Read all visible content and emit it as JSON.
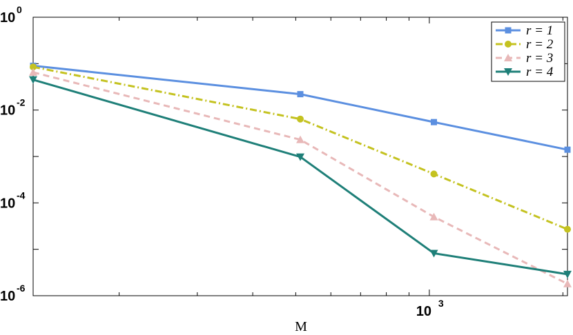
{
  "chart_data": {
    "type": "line",
    "xscale": "log",
    "yscale": "log",
    "xlim": [
      128,
      2048
    ],
    "ylim": [
      1e-06,
      1
    ],
    "xlabel": "M",
    "ylabel": "",
    "x_tick_labels": [
      {
        "value": 1000,
        "base": "10",
        "exp": "3"
      }
    ],
    "y_tick_labels": [
      {
        "value": 1,
        "base": "10",
        "exp": "0"
      },
      {
        "value": 0.01,
        "base": "10",
        "exp": "-2"
      },
      {
        "value": 0.0001,
        "base": "10",
        "exp": "-4"
      },
      {
        "value": 1e-06,
        "base": "10",
        "exp": "-6"
      }
    ],
    "grid": false,
    "legend_position": "top-right",
    "x": [
      128,
      512,
      1024,
      2048
    ],
    "series": [
      {
        "name": "r = 1",
        "values": [
          0.09,
          0.022,
          0.0055,
          0.0014
        ],
        "color": "#5b8fe0",
        "marker": "square",
        "dash": "solid"
      },
      {
        "name": "r = 2",
        "values": [
          0.085,
          0.0064,
          0.00042,
          2.7e-05
        ],
        "color": "#c4c220",
        "marker": "circle",
        "dash": "dashdot"
      },
      {
        "name": "r = 3",
        "values": [
          0.065,
          0.0023,
          5e-05,
          1.8e-06
        ],
        "color": "#e8b8b8",
        "marker": "triangle-up",
        "dash": "dashed"
      },
      {
        "name": "r = 4",
        "values": [
          0.045,
          0.00098,
          8.2e-06,
          2.9e-06
        ],
        "color": "#1e7f78",
        "marker": "triangle-down",
        "dash": "solid"
      }
    ]
  }
}
